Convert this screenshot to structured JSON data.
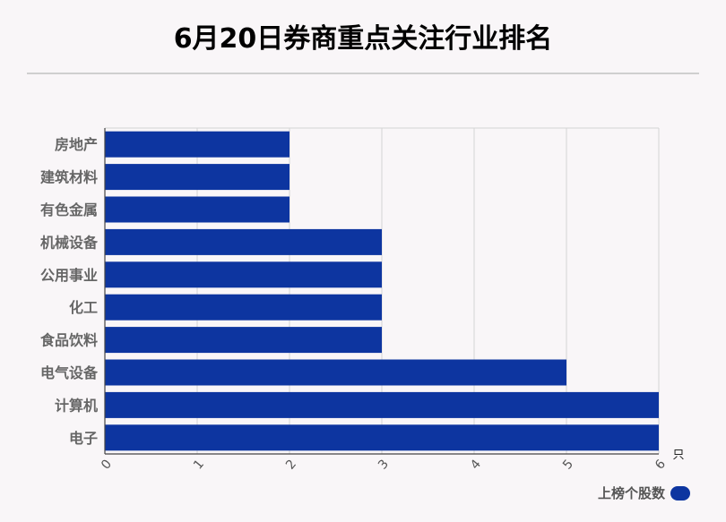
{
  "title": "6月20日券商重点关注行业排名",
  "chart_data": {
    "type": "bar",
    "orientation": "horizontal",
    "categories": [
      "房地产",
      "建筑材料",
      "有色金属",
      "机械设备",
      "公用事业",
      "化工",
      "食品饮料",
      "电气设备",
      "计算机",
      "电子"
    ],
    "series": [
      {
        "name": "上榜个股数",
        "values": [
          2,
          2,
          2,
          3,
          3,
          3,
          3,
          5,
          6,
          6
        ],
        "color": "#0d35a0"
      }
    ],
    "x_ticks": [
      "0",
      "1",
      "2",
      "3",
      "4",
      "5",
      "6"
    ],
    "xlim": [
      0,
      6
    ],
    "unit_label": "只",
    "grid": true,
    "legend_position": "bottom-right"
  }
}
